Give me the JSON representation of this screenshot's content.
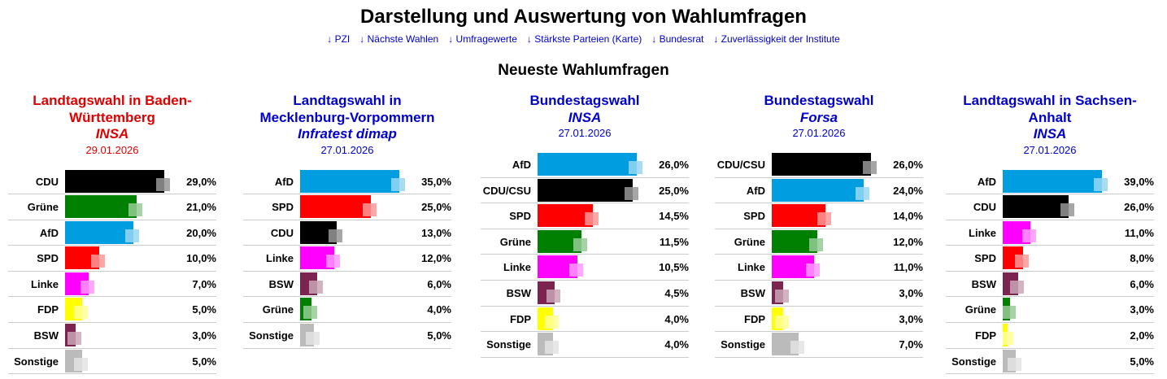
{
  "header": {
    "title": "Darstellung und Auswertung von Wahlumfragen",
    "nav": [
      "↓ PZI",
      "↓ Nächste Wahlen",
      "↓ Umfragewerte",
      "↓ Stärkste Parteien (Karte)",
      "↓ Bundesrat",
      "↓ Zuverlässigkeit der Institute"
    ],
    "subtitle": "Neueste Wahlumfragen"
  },
  "panels": [
    {
      "title": "Landtagswahl in Baden-Württemberg",
      "institute": "INSA",
      "date": "29.01.2026",
      "color": "#e00000",
      "rows": [
        {
          "party": "CDU",
          "value": 29.0,
          "label": "29,0%",
          "color": "#000000"
        },
        {
          "party": "Grüne",
          "value": 21.0,
          "label": "21,0%",
          "color": "#008000"
        },
        {
          "party": "AfD",
          "value": 20.0,
          "label": "20,0%",
          "color": "#009ee0"
        },
        {
          "party": "SPD",
          "value": 10.0,
          "label": "10,0%",
          "color": "#ff0000"
        },
        {
          "party": "Linke",
          "value": 7.0,
          "label": "7,0%",
          "color": "#ff00ff"
        },
        {
          "party": "FDP",
          "value": 5.0,
          "label": "5,0%",
          "color": "#ffff00"
        },
        {
          "party": "BSW",
          "value": 3.0,
          "label": "3,0%",
          "color": "#7b2450"
        },
        {
          "party": "Sonstige",
          "value": 5.0,
          "label": "5,0%",
          "color": "#bbbbbb"
        }
      ]
    },
    {
      "title": "Landtagswahl in Mecklenburg-Vorpommern",
      "institute": "Infratest dimap",
      "date": "27.01.2026",
      "color": "#0000cc",
      "rows": [
        {
          "party": "AfD",
          "value": 35.0,
          "label": "35,0%",
          "color": "#009ee0"
        },
        {
          "party": "SPD",
          "value": 25.0,
          "label": "25,0%",
          "color": "#ff0000"
        },
        {
          "party": "CDU",
          "value": 13.0,
          "label": "13,0%",
          "color": "#000000"
        },
        {
          "party": "Linke",
          "value": 12.0,
          "label": "12,0%",
          "color": "#ff00ff"
        },
        {
          "party": "BSW",
          "value": 6.0,
          "label": "6,0%",
          "color": "#7b2450"
        },
        {
          "party": "Grüne",
          "value": 4.0,
          "label": "4,0%",
          "color": "#008000"
        },
        {
          "party": "Sonstige",
          "value": 5.0,
          "label": "5,0%",
          "color": "#bbbbbb"
        }
      ]
    },
    {
      "title": "Bundestagswahl",
      "institute": "INSA",
      "date": "27.01.2026",
      "color": "#0000cc",
      "rows": [
        {
          "party": "AfD",
          "value": 26.0,
          "label": "26,0%",
          "color": "#009ee0"
        },
        {
          "party": "CDU/CSU",
          "value": 25.0,
          "label": "25,0%",
          "color": "#000000"
        },
        {
          "party": "SPD",
          "value": 14.5,
          "label": "14,5%",
          "color": "#ff0000"
        },
        {
          "party": "Grüne",
          "value": 11.5,
          "label": "11,5%",
          "color": "#008000"
        },
        {
          "party": "Linke",
          "value": 10.5,
          "label": "10,5%",
          "color": "#ff00ff"
        },
        {
          "party": "BSW",
          "value": 4.5,
          "label": "4,5%",
          "color": "#7b2450"
        },
        {
          "party": "FDP",
          "value": 4.0,
          "label": "4,0%",
          "color": "#ffff00"
        },
        {
          "party": "Sonstige",
          "value": 4.0,
          "label": "4,0%",
          "color": "#bbbbbb"
        }
      ]
    },
    {
      "title": "Bundestagswahl",
      "institute": "Forsa",
      "date": "27.01.2026",
      "color": "#0000cc",
      "rows": [
        {
          "party": "CDU/CSU",
          "value": 26.0,
          "label": "26,0%",
          "color": "#000000"
        },
        {
          "party": "AfD",
          "value": 24.0,
          "label": "24,0%",
          "color": "#009ee0"
        },
        {
          "party": "SPD",
          "value": 14.0,
          "label": "14,0%",
          "color": "#ff0000"
        },
        {
          "party": "Grüne",
          "value": 12.0,
          "label": "12,0%",
          "color": "#008000"
        },
        {
          "party": "Linke",
          "value": 11.0,
          "label": "11,0%",
          "color": "#ff00ff"
        },
        {
          "party": "BSW",
          "value": 3.0,
          "label": "3,0%",
          "color": "#7b2450"
        },
        {
          "party": "FDP",
          "value": 3.0,
          "label": "3,0%",
          "color": "#ffff00"
        },
        {
          "party": "Sonstige",
          "value": 7.0,
          "label": "7,0%",
          "color": "#bbbbbb"
        }
      ]
    },
    {
      "title": "Landtagswahl in Sachsen-Anhalt",
      "institute": "INSA",
      "date": "27.01.2026",
      "color": "#0000cc",
      "rows": [
        {
          "party": "AfD",
          "value": 39.0,
          "label": "39,0%",
          "color": "#009ee0"
        },
        {
          "party": "CDU",
          "value": 26.0,
          "label": "26,0%",
          "color": "#000000"
        },
        {
          "party": "Linke",
          "value": 11.0,
          "label": "11,0%",
          "color": "#ff00ff"
        },
        {
          "party": "SPD",
          "value": 8.0,
          "label": "8,0%",
          "color": "#ff0000"
        },
        {
          "party": "BSW",
          "value": 6.0,
          "label": "6,0%",
          "color": "#7b2450"
        },
        {
          "party": "Grüne",
          "value": 3.0,
          "label": "3,0%",
          "color": "#008000"
        },
        {
          "party": "FDP",
          "value": 2.0,
          "label": "2,0%",
          "color": "#ffff00"
        },
        {
          "party": "Sonstige",
          "value": 5.0,
          "label": "5,0%",
          "color": "#bbbbbb"
        }
      ]
    }
  ]
}
